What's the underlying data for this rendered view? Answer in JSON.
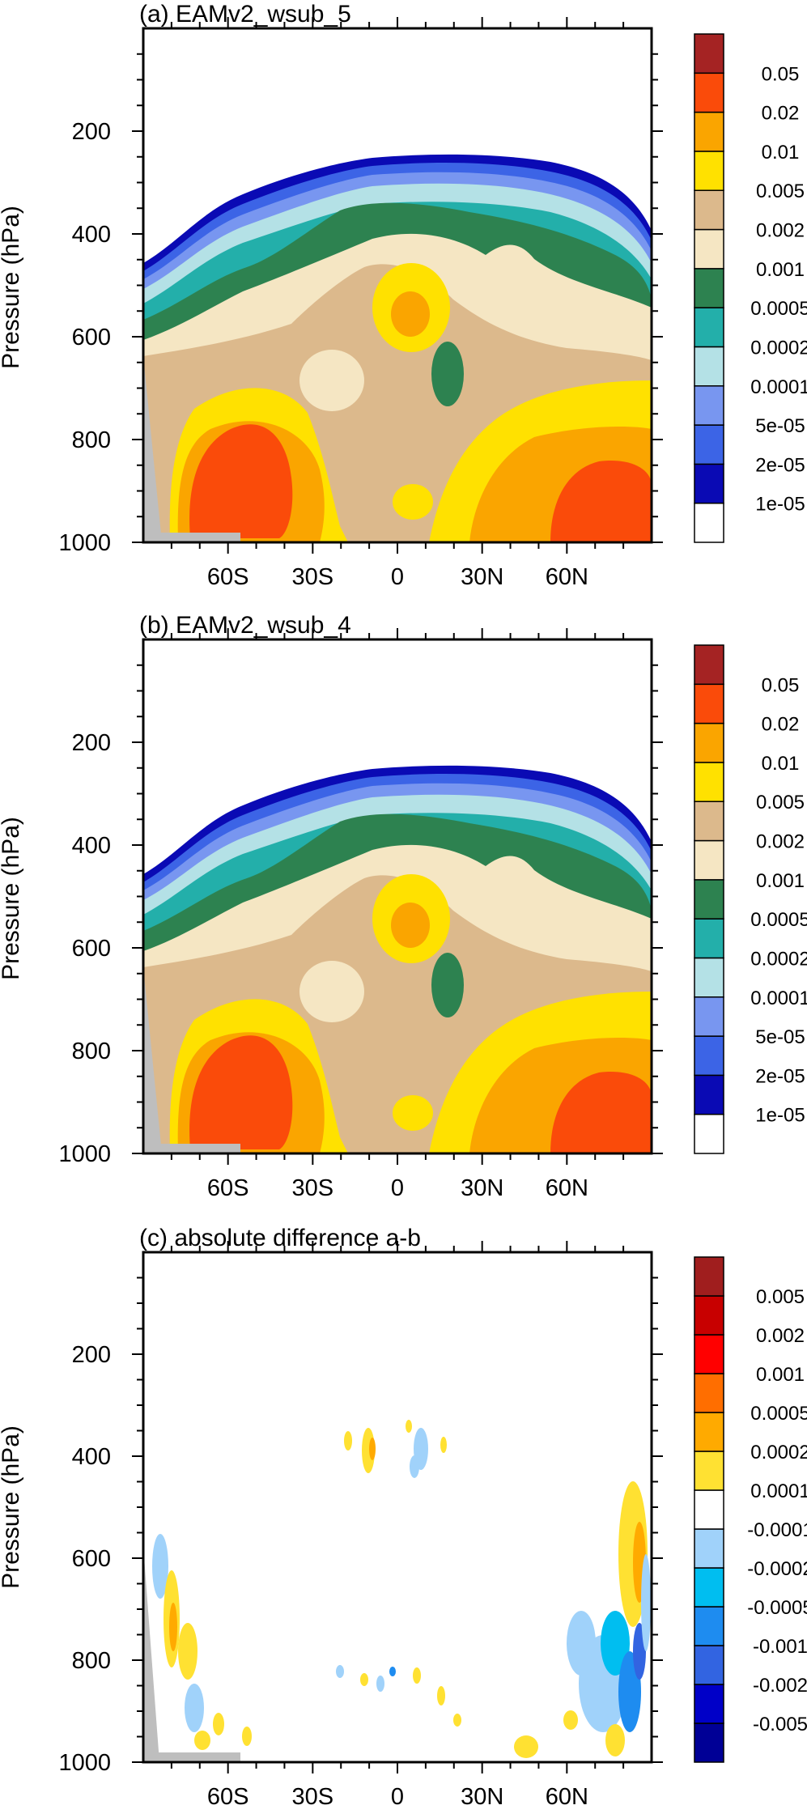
{
  "chart_data": [
    {
      "type": "heatmap",
      "title": "(a) EAMv2_wsub_5",
      "ylabel": "Pressure (hPa)",
      "xlabel": "",
      "xlim": [
        -90,
        90
      ],
      "ylim": [
        0,
        1000
      ],
      "xticks": [
        {
          "value": -60,
          "label": "60S"
        },
        {
          "value": -30,
          "label": "30S"
        },
        {
          "value": 0,
          "label": "0"
        },
        {
          "value": 30,
          "label": "30N"
        },
        {
          "value": 60,
          "label": "60N"
        }
      ],
      "yticks": [
        {
          "value": 200,
          "label": "200"
        },
        {
          "value": 400,
          "label": "400"
        },
        {
          "value": 600,
          "label": "600"
        },
        {
          "value": 800,
          "label": "800"
        },
        {
          "value": 1000,
          "label": "1000"
        }
      ],
      "levels": [
        "1e-05",
        "2e-05",
        "5e-05",
        "0.0001",
        "0.0002",
        "0.0005",
        "0.001",
        "0.002",
        "0.005",
        "0.01",
        "0.02",
        "0.05"
      ],
      "colors": [
        "#ffffff",
        "#0a0ab4",
        "#3c64e6",
        "#7896f0",
        "#b4e1e6",
        "#23afaa",
        "#2d8250",
        "#f5e6c3",
        "#dcb98c",
        "#ffe100",
        "#faa500",
        "#fa4b0a",
        "#a52323"
      ],
      "missing_color": "#bebebe",
      "features": [
        {
          "name": "upper edge of nonzero field (2e-05 contour)",
          "lat": [
            -90,
            -80,
            -70,
            -60,
            -50,
            -40,
            -30,
            -20,
            -10,
            0,
            10,
            20,
            30,
            40,
            50,
            60,
            70,
            80,
            90
          ],
          "pressure": [
            440,
            400,
            360,
            330,
            300,
            285,
            275,
            272,
            272,
            270,
            270,
            268,
            265,
            275,
            300,
            330,
            350,
            375,
            400
          ]
        },
        {
          "name": "maximum 0.02 SH lower troposphere",
          "lat": -57,
          "pressure": 850,
          "level": "0.02"
        },
        {
          "name": "maximum 0.02 NH lower troposphere",
          "lat": 68,
          "pressure": 890,
          "level": "0.02"
        },
        {
          "name": "local maximum 0.01 near 5S",
          "lat": 0,
          "pressure": 540,
          "level": "0.01"
        },
        {
          "name": "local minimum 0.001 near 15N",
          "lat": 13,
          "pressure": 680,
          "level": "0.001"
        }
      ]
    },
    {
      "type": "heatmap",
      "title": "(b) EAMv2_wsub_4",
      "ylabel": "Pressure (hPa)",
      "xlabel": "",
      "xlim": [
        -90,
        90
      ],
      "ylim": [
        0,
        1000
      ],
      "xticks": [
        {
          "value": -60,
          "label": "60S"
        },
        {
          "value": -30,
          "label": "30S"
        },
        {
          "value": 0,
          "label": "0"
        },
        {
          "value": 30,
          "label": "30N"
        },
        {
          "value": 60,
          "label": "60N"
        }
      ],
      "yticks": [
        {
          "value": 200,
          "label": "200"
        },
        {
          "value": 400,
          "label": "400"
        },
        {
          "value": 600,
          "label": "600"
        },
        {
          "value": 800,
          "label": "800"
        },
        {
          "value": 1000,
          "label": "1000"
        }
      ],
      "levels": [
        "1e-05",
        "2e-05",
        "5e-05",
        "0.0001",
        "0.0002",
        "0.0005",
        "0.001",
        "0.002",
        "0.005",
        "0.01",
        "0.02",
        "0.05"
      ],
      "colors": [
        "#ffffff",
        "#0a0ab4",
        "#3c64e6",
        "#7896f0",
        "#b4e1e6",
        "#23afaa",
        "#2d8250",
        "#f5e6c3",
        "#dcb98c",
        "#ffe100",
        "#faa500",
        "#fa4b0a",
        "#a52323"
      ],
      "missing_color": "#bebebe",
      "features": [
        {
          "name": "upper edge of nonzero field (2e-05 contour)",
          "lat": [
            -90,
            -80,
            -70,
            -60,
            -50,
            -40,
            -30,
            -20,
            -10,
            0,
            10,
            20,
            30,
            40,
            50,
            60,
            70,
            80,
            90
          ],
          "pressure": [
            440,
            400,
            360,
            330,
            300,
            285,
            275,
            272,
            272,
            270,
            270,
            268,
            265,
            275,
            300,
            330,
            350,
            375,
            400
          ]
        },
        {
          "name": "maximum 0.02 SH lower troposphere",
          "lat": -57,
          "pressure": 850,
          "level": "0.02"
        },
        {
          "name": "maximum 0.02 NH lower troposphere",
          "lat": 68,
          "pressure": 890,
          "level": "0.02"
        },
        {
          "name": "local maximum 0.01 near 5S",
          "lat": 0,
          "pressure": 540,
          "level": "0.01"
        },
        {
          "name": "local minimum 0.001 near 15N",
          "lat": 13,
          "pressure": 680,
          "level": "0.001"
        }
      ]
    },
    {
      "type": "heatmap",
      "title": "(c) absolute difference a-b",
      "ylabel": "Pressure (hPa)",
      "xlabel": "",
      "xlim": [
        -90,
        90
      ],
      "ylim": [
        0,
        1000
      ],
      "xticks": [
        {
          "value": -60,
          "label": "60S"
        },
        {
          "value": -30,
          "label": "30S"
        },
        {
          "value": 0,
          "label": "0"
        },
        {
          "value": 30,
          "label": "30N"
        },
        {
          "value": 60,
          "label": "60N"
        }
      ],
      "yticks": [
        {
          "value": 200,
          "label": "200"
        },
        {
          "value": 400,
          "label": "400"
        },
        {
          "value": 600,
          "label": "600"
        },
        {
          "value": 800,
          "label": "800"
        },
        {
          "value": 1000,
          "label": "1000"
        }
      ],
      "levels": [
        "-0.005",
        "-0.002",
        "-0.001",
        "-0.0005",
        "-0.0002",
        "-0.0001",
        "0.0001",
        "0.0002",
        "0.0005",
        "0.001",
        "0.002",
        "0.005"
      ],
      "colors": [
        "#000096",
        "#0000c8",
        "#3264e1",
        "#1e8cf0",
        "#00bef0",
        "#a0d2fa",
        "#ffffff",
        "#ffe132",
        "#ffaa00",
        "#ff6e00",
        "#ff0000",
        "#c80000",
        "#a01e1e"
      ],
      "missing_color": "#bebebe",
      "features": [
        {
          "name": "weak positive patch 20S",
          "lat": -18,
          "pressure": 560,
          "level": "0.0001"
        },
        {
          "name": "weak negative patch 5N",
          "lat": 5,
          "pressure": 590,
          "level": "-0.0001"
        },
        {
          "name": "scattered differences SH high latitudes",
          "lat": -78,
          "pressure": 850,
          "level": "0.0002"
        },
        {
          "name": "scattered differences NH high latitudes",
          "lat": 78,
          "pressure": 820,
          "level": "-0.0005"
        }
      ]
    }
  ]
}
